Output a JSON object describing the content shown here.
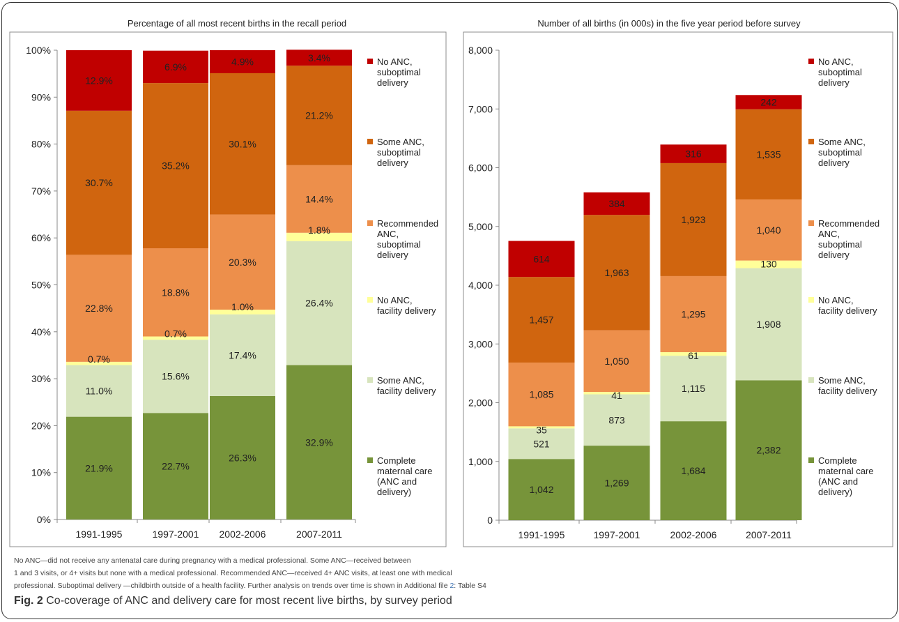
{
  "chart_data": [
    {
      "type": "bar",
      "stacked": true,
      "title": "Percentage of all most recent births in the recall period",
      "categories": [
        "1991-1995",
        "1997-2001",
        "2002-2006",
        "2007-2011"
      ],
      "ylim": [
        0,
        100
      ],
      "yticks": [
        "0%",
        "10%",
        "20%",
        "30%",
        "40%",
        "50%",
        "60%",
        "70%",
        "80%",
        "90%",
        "100%"
      ],
      "tick_values": [
        0,
        10,
        20,
        30,
        40,
        50,
        60,
        70,
        80,
        90,
        100
      ],
      "series": [
        {
          "name": "Complete maternal care (ANC and delivery)",
          "legend_lines": [
            "Complete",
            "maternal care",
            "(ANC and",
            "delivery)"
          ],
          "color": "#77943a",
          "values": [
            21.9,
            22.7,
            26.3,
            32.9
          ],
          "labels": [
            "21.9%",
            "22.7%",
            "26.3%",
            "32.9%"
          ]
        },
        {
          "name": "Some ANC, facility delivery",
          "legend_lines": [
            "Some ANC,",
            "facility delivery"
          ],
          "color": "#d7e4bd",
          "values": [
            11.0,
            15.6,
            17.4,
            26.4
          ],
          "labels": [
            "11.0%",
            "15.6%",
            "17.4%",
            "26.4%"
          ]
        },
        {
          "name": "No ANC, facility delivery",
          "legend_lines": [
            "No ANC,",
            "facility delivery"
          ],
          "color": "#ffff99",
          "values": [
            0.7,
            0.7,
            1.0,
            1.8
          ],
          "labels": [
            "0.7%",
            "0.7%",
            "1.0%",
            "1.8%"
          ]
        },
        {
          "name": "Recommended ANC, suboptimal delivery",
          "legend_lines": [
            "Recommended",
            "ANC,",
            "suboptimal",
            "delivery"
          ],
          "color": "#ed8f4b",
          "values": [
            22.8,
            18.8,
            20.3,
            14.4
          ],
          "labels": [
            "22.8%",
            "18.8%",
            "20.3%",
            "14.4%"
          ]
        },
        {
          "name": "Some ANC, suboptimal delivery",
          "legend_lines": [
            "Some ANC,",
            "suboptimal",
            "delivery"
          ],
          "color": "#d0650f",
          "values": [
            30.7,
            35.2,
            30.1,
            21.2
          ],
          "labels": [
            "30.7%",
            "35.2%",
            "30.1%",
            "21.2%"
          ]
        },
        {
          "name": "No ANC, suboptimal delivery",
          "legend_lines": [
            "No ANC,",
            "suboptimal",
            "delivery"
          ],
          "color": "#c00000",
          "values": [
            12.9,
            6.9,
            4.9,
            3.4
          ],
          "labels": [
            "12.9%",
            "6.9%",
            "4.9%",
            "3.4%"
          ]
        }
      ]
    },
    {
      "type": "bar",
      "stacked": true,
      "title": "Number of all births (in 000s) in the five year period before survey",
      "categories": [
        "1991-1995",
        "1997-2001",
        "2002-2006",
        "2007-2011"
      ],
      "ylim": [
        0,
        8000
      ],
      "yticks": [
        "0",
        "1,000",
        "2,000",
        "3,000",
        "4,000",
        "5,000",
        "6,000",
        "7,000",
        "8,000"
      ],
      "tick_values": [
        0,
        1000,
        2000,
        3000,
        4000,
        5000,
        6000,
        7000,
        8000
      ],
      "series": [
        {
          "name": "Complete maternal care (ANC and delivery)",
          "legend_lines": [
            "Complete",
            "maternal care",
            "(ANC and",
            "delivery)"
          ],
          "color": "#77943a",
          "values": [
            1042,
            1269,
            1684,
            2382
          ],
          "labels": [
            "1,042",
            "1,269",
            "1,684",
            "2,382"
          ]
        },
        {
          "name": "Some ANC, facility delivery",
          "legend_lines": [
            "Some ANC,",
            "facility delivery"
          ],
          "color": "#d7e4bd",
          "values": [
            521,
            873,
            1115,
            1908
          ],
          "labels": [
            "521",
            "873",
            "1,115",
            "1,908"
          ]
        },
        {
          "name": "No ANC, facility delivery",
          "legend_lines": [
            "No ANC,",
            "facility delivery"
          ],
          "color": "#ffff99",
          "values": [
            35,
            41,
            61,
            130
          ],
          "labels": [
            "35",
            "41",
            "61",
            "130"
          ]
        },
        {
          "name": "Recommended ANC, suboptimal delivery",
          "legend_lines": [
            "Recommended",
            "ANC,",
            "suboptimal",
            "delivery"
          ],
          "color": "#ed8f4b",
          "values": [
            1085,
            1050,
            1295,
            1040
          ],
          "labels": [
            "1,085",
            "1,050",
            "1,295",
            "1,040"
          ]
        },
        {
          "name": "Some ANC, suboptimal delivery",
          "legend_lines": [
            "Some ANC,",
            "suboptimal",
            "delivery"
          ],
          "color": "#d0650f",
          "values": [
            1457,
            1963,
            1923,
            1535
          ],
          "labels": [
            "1,457",
            "1,963",
            "1,923",
            "1,535"
          ]
        },
        {
          "name": "No ANC, suboptimal delivery",
          "legend_lines": [
            "No ANC,",
            "suboptimal",
            "delivery"
          ],
          "color": "#c00000",
          "values": [
            614,
            384,
            316,
            242
          ],
          "labels": [
            "614",
            "384",
            "316",
            "242"
          ]
        }
      ]
    }
  ],
  "notes": {
    "line1": "No ANC—did not receive any antenatal care during pregnancy with a medical professional. Some ANC—received between",
    "line2": "1 and 3 visits, or 4+ visits but none with a medical professional. Recommended ANC—received 4+ ANC visits, at least one with medical",
    "line3a": "professional. Suboptimal delivery —childbirth outside of a health facility. Further analysis on trends over time is shown in Additional file ",
    "line3ref": "2",
    "line3b": ": Table S4"
  },
  "caption": {
    "label": "Fig. 2",
    "text": "Co-coverage of ANC and delivery care for most recent live births, by survey period"
  }
}
